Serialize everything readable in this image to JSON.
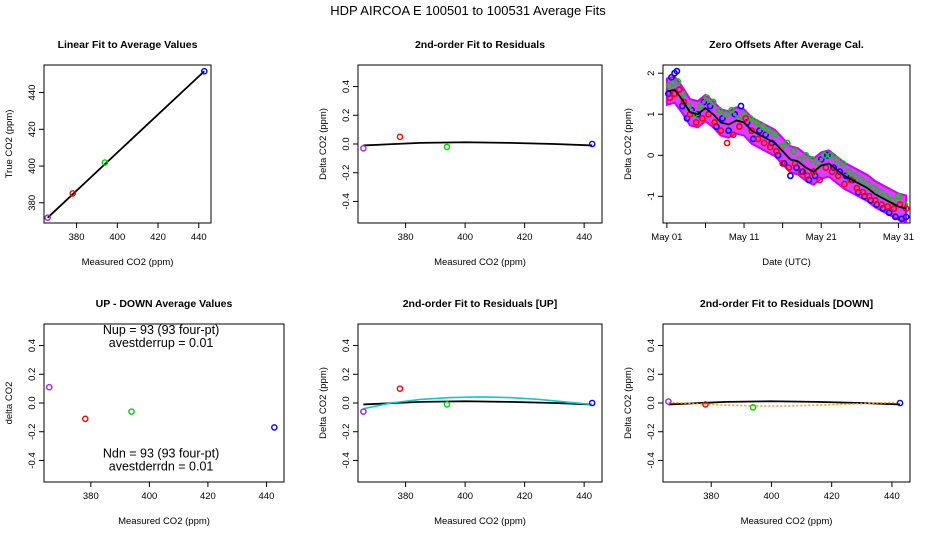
{
  "page_title": "HDP   AIRCOA E   100501 to 100531   Average Fits",
  "colors": {
    "purple": "#a020f0",
    "red": "#ff0000",
    "green": "#00cc00",
    "blue": "#0000ff",
    "black": "#000000",
    "cyan": "#00d0d0",
    "orange": "#ffa500",
    "magenta": "#cc00ff"
  },
  "chart_data": [
    {
      "id": "p1",
      "type": "scatter",
      "title": "Linear Fit to Average Values",
      "xlabel": "Measured CO2 (ppm)",
      "ylabel": "True CO2 (ppm)",
      "xlim": [
        364,
        446
      ],
      "ylim": [
        369,
        455
      ],
      "xticks": [
        380,
        400,
        420,
        440
      ],
      "xtick_labels": [
        "380",
        "400",
        "420",
        "440"
      ],
      "yticks": [
        380,
        400,
        420,
        440
      ],
      "ytick_labels": [
        "380",
        "400",
        "420",
        "440"
      ],
      "points": [
        {
          "x": 365.8,
          "y": 371.9,
          "color": "purple"
        },
        {
          "x": 378.1,
          "y": 385.1,
          "color": "red"
        },
        {
          "x": 393.9,
          "y": 401.9,
          "color": "green"
        },
        {
          "x": 442.7,
          "y": 451.6,
          "color": "blue"
        }
      ],
      "lines": [
        {
          "color": "black",
          "x": [
            365.8,
            442.7
          ],
          "y": [
            371.9,
            451.6
          ]
        }
      ]
    },
    {
      "id": "p2",
      "type": "scatter",
      "title": "2nd-order Fit to Residuals",
      "xlabel": "Measured CO2 (ppm)",
      "ylabel": "Delta CO2 (ppm)",
      "xlim": [
        364,
        446
      ],
      "ylim": [
        -0.55,
        0.55
      ],
      "xticks": [
        380,
        400,
        420,
        440
      ],
      "xtick_labels": [
        "380",
        "400",
        "420",
        "440"
      ],
      "yticks": [
        -0.4,
        -0.2,
        0,
        0.2,
        0.4
      ],
      "ytick_labels": [
        "-0.4",
        "-0.2",
        "0.0",
        "0.2",
        "0.4"
      ],
      "points": [
        {
          "x": 365.8,
          "y": -0.03,
          "color": "purple"
        },
        {
          "x": 378.1,
          "y": 0.05,
          "color": "red"
        },
        {
          "x": 393.9,
          "y": -0.02,
          "color": "green"
        },
        {
          "x": 442.7,
          "y": 0.0,
          "color": "blue"
        }
      ],
      "lines": [
        {
          "color": "black",
          "x": [
            365.8,
            385,
            400,
            415,
            430,
            442.7
          ],
          "y": [
            -0.01,
            0.008,
            0.012,
            0.008,
            0.0,
            -0.01
          ]
        }
      ]
    },
    {
      "id": "p3",
      "type": "scatter",
      "title": "Zero Offsets After Average Cal.",
      "xlabel": "Date (UTC)",
      "ylabel": "Delta CO2 (ppm)",
      "xlim": [
        -0.5,
        31.5
      ],
      "ylim": [
        -1.65,
        2.2
      ],
      "xticks": [
        0,
        10,
        20,
        30
      ],
      "xtick_labels": [
        "May 01",
        "May 11",
        "May 21",
        "May 31"
      ],
      "minor_xticks": [
        5,
        15,
        25
      ],
      "yticks": [
        -1,
        0,
        1,
        2
      ],
      "ytick_labels": [
        "-1",
        "0",
        "1",
        "2"
      ],
      "series": [
        {
          "name": "blue",
          "color": "blue",
          "x": [
            0.2,
            0.6,
            1,
            1.3,
            1.6,
            2,
            2.6,
            3.2,
            4,
            4.8,
            5.6,
            6.4,
            7.2,
            8,
            8.8,
            9.6,
            10.4,
            11.2,
            12,
            12.8,
            13.6,
            14.4,
            15.2,
            16,
            16.8,
            17.6,
            18.4,
            19.2,
            20,
            20.8,
            21.6,
            22.4,
            23.2,
            24,
            24.8,
            25.6,
            26.4,
            27.2,
            28,
            28.8,
            29.6,
            30.4,
            31
          ],
          "y": [
            1.5,
            1.9,
            2.0,
            2.05,
            1.6,
            1.2,
            0.9,
            1.1,
            1.0,
            1.3,
            1.2,
            0.7,
            0.9,
            0.6,
            1.0,
            1.2,
            0.8,
            0.4,
            0.6,
            0.5,
            0.3,
            0.0,
            -0.2,
            -0.5,
            -0.3,
            -0.4,
            -0.6,
            -0.5,
            -0.1,
            0.0,
            -0.3,
            -0.4,
            -0.5,
            -0.6,
            -0.9,
            -1.0,
            -1.1,
            -1.2,
            -1.3,
            -1.4,
            -1.5,
            -1.55,
            -1.5
          ]
        },
        {
          "name": "green",
          "color": "green",
          "x": [
            0.3,
            0.8,
            1.4,
            2,
            2.8,
            3.6,
            4.4,
            5.2,
            6,
            6.8,
            7.6,
            8.4,
            9.2,
            10,
            10.8,
            11.6,
            12.4,
            13.2,
            14,
            14.8,
            15.6,
            16.4,
            17.2,
            18,
            18.8,
            19.6,
            20.4,
            21.2,
            22,
            22.8,
            23.6,
            24.4,
            25.2,
            26,
            26.8,
            27.6,
            28.4,
            29.2,
            30,
            30.8
          ],
          "y": [
            1.7,
            1.75,
            1.8,
            1.5,
            1.2,
            1.0,
            1.2,
            1.4,
            1.3,
            1.1,
            1.0,
            1.1,
            0.9,
            1.0,
            0.9,
            0.8,
            0.7,
            0.6,
            0.5,
            0.2,
            0.3,
            0.1,
            -0.1,
            0.0,
            -0.1,
            -0.2,
            0.0,
            0.0,
            -0.1,
            -0.2,
            -0.4,
            -0.5,
            -0.6,
            -0.7,
            -0.8,
            -0.9,
            -1.0,
            -1.1,
            -1.0,
            -1.2
          ]
        },
        {
          "name": "red",
          "color": "red",
          "x": [
            0.4,
            1,
            1.6,
            2.2,
            3,
            3.8,
            4.6,
            5.4,
            6.2,
            7,
            7.8,
            8.6,
            9.4,
            10.2,
            11,
            11.8,
            12.6,
            13.4,
            14.2,
            15,
            15.8,
            16.6,
            17.4,
            18.2,
            19,
            19.8,
            20.6,
            21.4,
            22.2,
            23,
            23.8,
            24.6,
            25.4,
            26.2,
            27,
            27.8,
            28.6,
            29.4,
            30.2,
            31
          ],
          "y": [
            1.4,
            1.5,
            1.6,
            1.3,
            1.0,
            0.8,
            0.9,
            1.0,
            0.8,
            0.6,
            0.3,
            0.5,
            0.7,
            0.9,
            0.6,
            0.4,
            0.3,
            0.2,
            0.1,
            -0.2,
            -0.3,
            -0.2,
            -0.4,
            -0.5,
            -0.4,
            -0.6,
            -0.3,
            -0.4,
            -0.5,
            -0.7,
            -0.6,
            -0.8,
            -0.9,
            -1.0,
            -1.1,
            -1.2,
            -1.25,
            -1.3,
            -1.2,
            -1.3
          ]
        }
      ],
      "band": {
        "color": "magenta",
        "x": [
          0,
          1,
          2,
          3,
          4,
          5,
          6,
          7,
          8,
          9,
          10,
          11,
          12,
          13,
          14,
          15,
          16,
          17,
          18,
          19,
          20,
          21,
          22,
          23,
          24,
          25,
          26,
          27,
          28,
          29,
          30,
          31
        ],
        "y": [
          1.55,
          1.6,
          1.35,
          1.05,
          1.0,
          1.15,
          1.0,
          0.8,
          0.75,
          0.85,
          0.8,
          0.6,
          0.5,
          0.4,
          0.3,
          0.1,
          -0.1,
          -0.15,
          -0.3,
          -0.4,
          -0.25,
          -0.2,
          -0.35,
          -0.5,
          -0.6,
          -0.7,
          -0.8,
          -0.95,
          -1.05,
          -1.15,
          -1.25,
          -1.3
        ],
        "halfwidth": 0.32
      },
      "lines": [
        {
          "color": "black",
          "x": [
            0,
            1,
            2,
            3,
            4,
            5,
            6,
            7,
            8,
            9,
            10,
            11,
            12,
            13,
            14,
            15,
            16,
            17,
            18,
            19,
            20,
            21,
            22,
            23,
            24,
            25,
            26,
            27,
            28,
            29,
            30,
            31
          ],
          "y": [
            1.55,
            1.6,
            1.35,
            1.05,
            1.0,
            1.15,
            1.0,
            0.8,
            0.75,
            0.85,
            0.8,
            0.6,
            0.5,
            0.4,
            0.3,
            0.1,
            -0.1,
            -0.15,
            -0.3,
            -0.4,
            -0.25,
            -0.2,
            -0.35,
            -0.5,
            -0.6,
            -0.7,
            -0.8,
            -0.95,
            -1.05,
            -1.15,
            -1.25,
            -1.3
          ]
        }
      ]
    },
    {
      "id": "p4",
      "type": "scatter",
      "title": "UP - DOWN Average Values",
      "xlabel": "Measured CO2 (ppm)",
      "ylabel": "delta CO2",
      "xlim": [
        364,
        446
      ],
      "ylim": [
        -0.55,
        0.55
      ],
      "xticks": [
        380,
        400,
        420,
        440
      ],
      "xtick_labels": [
        "380",
        "400",
        "420",
        "440"
      ],
      "yticks": [
        -0.4,
        -0.2,
        0,
        0.2,
        0.4
      ],
      "ytick_labels": [
        "-0.4",
        "-0.2",
        "0.0",
        "0.2",
        "0.4"
      ],
      "points": [
        {
          "x": 365.8,
          "y": 0.11,
          "color": "purple"
        },
        {
          "x": 378.1,
          "y": -0.11,
          "color": "red"
        },
        {
          "x": 393.9,
          "y": -0.06,
          "color": "green"
        },
        {
          "x": 442.7,
          "y": -0.17,
          "color": "blue"
        }
      ],
      "lines": [],
      "annotations": [
        {
          "text": "Nup = 93 (93 four-pt)",
          "x": 404,
          "y": 0.48
        },
        {
          "text": "avestderrup =  0.01",
          "x": 404,
          "y": 0.39
        },
        {
          "text": "Ndn = 93 (93 four-pt)",
          "x": 404,
          "y": -0.38
        },
        {
          "text": "avestderrdn =  0.01",
          "x": 404,
          "y": -0.47
        }
      ]
    },
    {
      "id": "p5",
      "type": "scatter",
      "title": "2nd-order Fit to Residuals [UP]",
      "xlabel": "Measured CO2 (ppm)",
      "ylabel": "Delta CO2 (ppm)",
      "xlim": [
        364,
        446
      ],
      "ylim": [
        -0.55,
        0.55
      ],
      "xticks": [
        380,
        400,
        420,
        440
      ],
      "xtick_labels": [
        "380",
        "400",
        "420",
        "440"
      ],
      "yticks": [
        -0.4,
        -0.2,
        0,
        0.2,
        0.4
      ],
      "ytick_labels": [
        "-0.4",
        "-0.2",
        "0.0",
        "0.2",
        "0.4"
      ],
      "points": [
        {
          "x": 365.8,
          "y": -0.06,
          "color": "purple"
        },
        {
          "x": 378.1,
          "y": 0.1,
          "color": "red"
        },
        {
          "x": 393.9,
          "y": -0.01,
          "color": "green"
        },
        {
          "x": 442.7,
          "y": 0.0,
          "color": "blue"
        }
      ],
      "lines": [
        {
          "color": "black",
          "x": [
            365.8,
            385,
            400,
            415,
            430,
            442.7
          ],
          "y": [
            -0.01,
            0.008,
            0.012,
            0.008,
            0.0,
            -0.01
          ]
        },
        {
          "color": "cyan",
          "x": [
            365.8,
            375,
            385,
            395,
            405,
            415,
            425,
            435,
            442.7
          ],
          "y": [
            -0.04,
            0.0,
            0.025,
            0.038,
            0.042,
            0.038,
            0.025,
            0.005,
            -0.01
          ]
        }
      ]
    },
    {
      "id": "p6",
      "type": "scatter",
      "title": "2nd-order Fit to Residuals [DOWN]",
      "xlabel": "Measured CO2 (ppm)",
      "ylabel": "Delta CO2 (ppm)",
      "xlim": [
        364,
        446
      ],
      "ylim": [
        -0.55,
        0.55
      ],
      "xticks": [
        380,
        400,
        420,
        440
      ],
      "xtick_labels": [
        "380",
        "400",
        "420",
        "440"
      ],
      "yticks": [
        -0.4,
        -0.2,
        0,
        0.2,
        0.4
      ],
      "ytick_labels": [
        "-0.4",
        "-0.2",
        "0.0",
        "0.2",
        "0.4"
      ],
      "points": [
        {
          "x": 365.8,
          "y": 0.01,
          "color": "purple"
        },
        {
          "x": 378.1,
          "y": -0.01,
          "color": "red"
        },
        {
          "x": 393.9,
          "y": -0.03,
          "color": "green"
        },
        {
          "x": 442.7,
          "y": 0.0,
          "color": "blue"
        }
      ],
      "lines": [
        {
          "color": "black",
          "x": [
            365.8,
            385,
            400,
            415,
            430,
            442.7
          ],
          "y": [
            -0.01,
            0.008,
            0.012,
            0.008,
            0.0,
            -0.01
          ]
        },
        {
          "color": "orange",
          "dashed": true,
          "x": [
            365.8,
            375,
            385,
            395,
            405,
            415,
            425,
            435,
            442.7
          ],
          "y": [
            0.005,
            -0.005,
            -0.015,
            -0.02,
            -0.02,
            -0.015,
            -0.008,
            0.0,
            0.005
          ]
        }
      ]
    }
  ]
}
